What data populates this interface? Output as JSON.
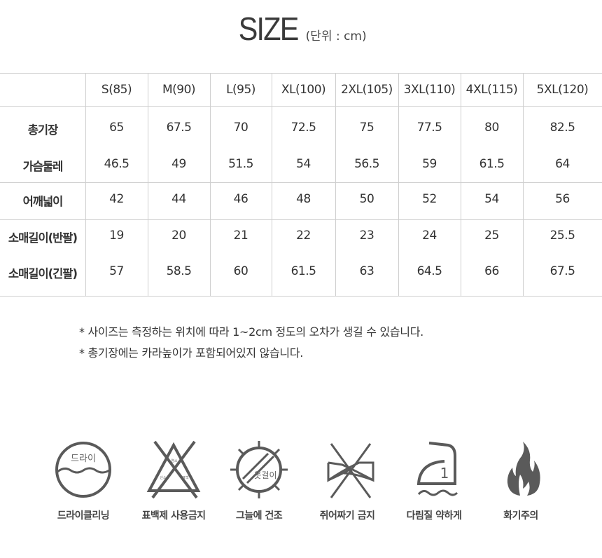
{
  "title": {
    "main": "SIZE",
    "unit": "(단위 : cm)"
  },
  "table": {
    "headers": [
      "S(85)",
      "M(90)",
      "L(95)",
      "XL(100)",
      "2XL(105)",
      "3XL(110)",
      "4XL(115)",
      "5XL(120)"
    ],
    "rows": [
      {
        "label": "총기장",
        "values": [
          "65",
          "67.5",
          "70",
          "72.5",
          "75",
          "77.5",
          "80",
          "82.5"
        ]
      },
      {
        "label": "가슴둘레",
        "values": [
          "46.5",
          "49",
          "51.5",
          "54",
          "56.5",
          "59",
          "61.5",
          "64"
        ]
      },
      {
        "label": "어깨넓이",
        "values": [
          "42",
          "44",
          "46",
          "48",
          "50",
          "52",
          "54",
          "56"
        ]
      },
      {
        "label": "소매길이(반팔)",
        "values": [
          "19",
          "20",
          "21",
          "22",
          "23",
          "24",
          "25",
          "25.5"
        ]
      },
      {
        "label": "소매길이(긴팔)",
        "values": [
          "57",
          "58.5",
          "60",
          "61.5",
          "63",
          "64.5",
          "66",
          "67.5"
        ]
      }
    ]
  },
  "notes": [
    "* 사이즈는 측정하는 위치에 따라 1~2cm 정도의 오차가 생길 수 있습니다.",
    "* 총기장에는 카라높이가 포함되어있지 않습니다."
  ],
  "care": [
    {
      "icon": "dry-clean-icon",
      "label": "드라이클리닝",
      "icon_text": "드라이"
    },
    {
      "icon": "no-bleach-icon",
      "label": "표백제 사용금지",
      "icon_text": [
        "염소",
        "산소",
        "표백"
      ]
    },
    {
      "icon": "shade-dry-icon",
      "label": "그늘에 건조",
      "icon_text": "옷걸이"
    },
    {
      "icon": "no-wring-icon",
      "label": "쥐어짜기 금지"
    },
    {
      "icon": "iron-low-icon",
      "label": "다림질 약하게",
      "icon_text": "1"
    },
    {
      "icon": "fire-caution-icon",
      "label": "화기주의"
    }
  ],
  "colors": {
    "icon": "#5a5a5a",
    "line": "#cfcfcf"
  }
}
